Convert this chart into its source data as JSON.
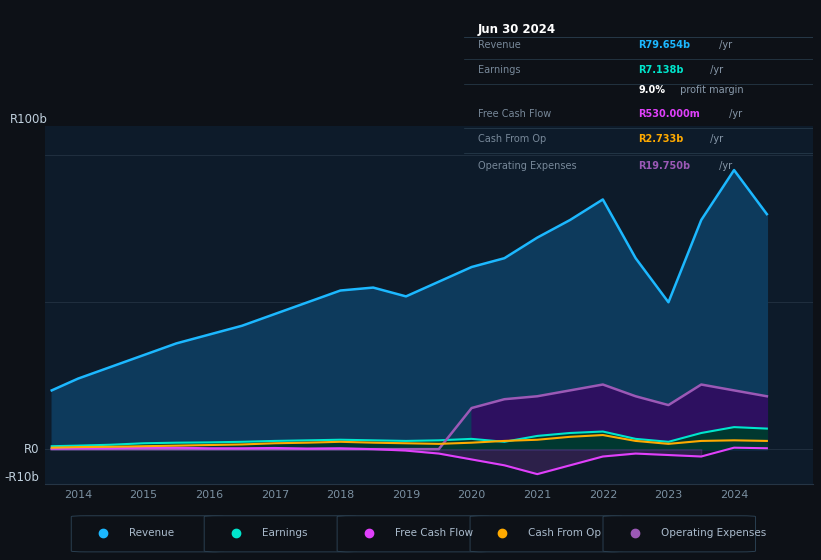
{
  "background_color": "#0d1117",
  "plot_bg_color": "#0d1b2a",
  "ylim": [
    -12,
    110
  ],
  "xlim": [
    2013.5,
    2025.2
  ],
  "xticks": [
    2014,
    2015,
    2016,
    2017,
    2018,
    2019,
    2020,
    2021,
    2022,
    2023,
    2024
  ],
  "years": [
    2013.6,
    2014.0,
    2014.5,
    2015.0,
    2015.5,
    2016.0,
    2016.5,
    2017.0,
    2017.5,
    2018.0,
    2018.5,
    2019.0,
    2019.5,
    2020.0,
    2020.5,
    2021.0,
    2021.5,
    2022.0,
    2022.5,
    2023.0,
    2023.5,
    2024.0,
    2024.5
  ],
  "revenue": [
    20,
    24,
    28,
    32,
    36,
    39,
    42,
    46,
    50,
    54,
    55,
    52,
    57,
    62,
    65,
    72,
    78,
    85,
    65,
    50,
    78,
    95,
    80
  ],
  "earnings": [
    1.0,
    1.2,
    1.5,
    2.0,
    2.2,
    2.3,
    2.5,
    2.8,
    3.0,
    3.2,
    3.0,
    2.8,
    3.0,
    3.5,
    2.5,
    4.5,
    5.5,
    6.0,
    3.5,
    2.5,
    5.5,
    7.5,
    7.0
  ],
  "free_cash_flow": [
    0.2,
    0.3,
    0.3,
    0.5,
    0.5,
    0.3,
    0.3,
    0.4,
    0.2,
    0.3,
    0.0,
    -0.5,
    -1.5,
    -3.5,
    -5.5,
    -8.5,
    -5.5,
    -2.5,
    -1.5,
    -2.0,
    -2.5,
    0.5,
    0.3
  ],
  "cash_from_op": [
    0.5,
    0.7,
    0.8,
    1.0,
    1.2,
    1.4,
    1.6,
    2.0,
    2.2,
    2.5,
    2.2,
    2.0,
    1.8,
    2.2,
    2.8,
    3.2,
    4.2,
    4.8,
    2.8,
    1.8,
    2.8,
    3.0,
    2.8
  ],
  "operating_expenses": [
    0.0,
    0.0,
    0.0,
    0.0,
    0.0,
    0.0,
    0.0,
    0.0,
    0.0,
    0.0,
    0.0,
    0.0,
    0.0,
    14,
    17,
    18,
    20,
    22,
    18,
    15,
    22,
    20,
    18
  ],
  "revenue_color": "#1cb8ff",
  "revenue_fill": "#0d3a5c",
  "earnings_color": "#00e5cc",
  "free_cash_flow_color": "#e040fb",
  "cash_from_op_color": "#ffaa00",
  "operating_expenses_color": "#9b59b6",
  "operating_expenses_fill": "#2d1060",
  "grid_color": "#253545",
  "text_color": "#7a8fa0",
  "label_color": "#c0d0dd",
  "info_box_bg": "#111a24",
  "info_box_border": "#2a3f50",
  "legend": [
    {
      "label": "Revenue",
      "color": "#1cb8ff"
    },
    {
      "label": "Earnings",
      "color": "#00e5cc"
    },
    {
      "label": "Free Cash Flow",
      "color": "#e040fb"
    },
    {
      "label": "Cash From Op",
      "color": "#ffaa00"
    },
    {
      "label": "Operating Expenses",
      "color": "#9b59b6"
    }
  ]
}
